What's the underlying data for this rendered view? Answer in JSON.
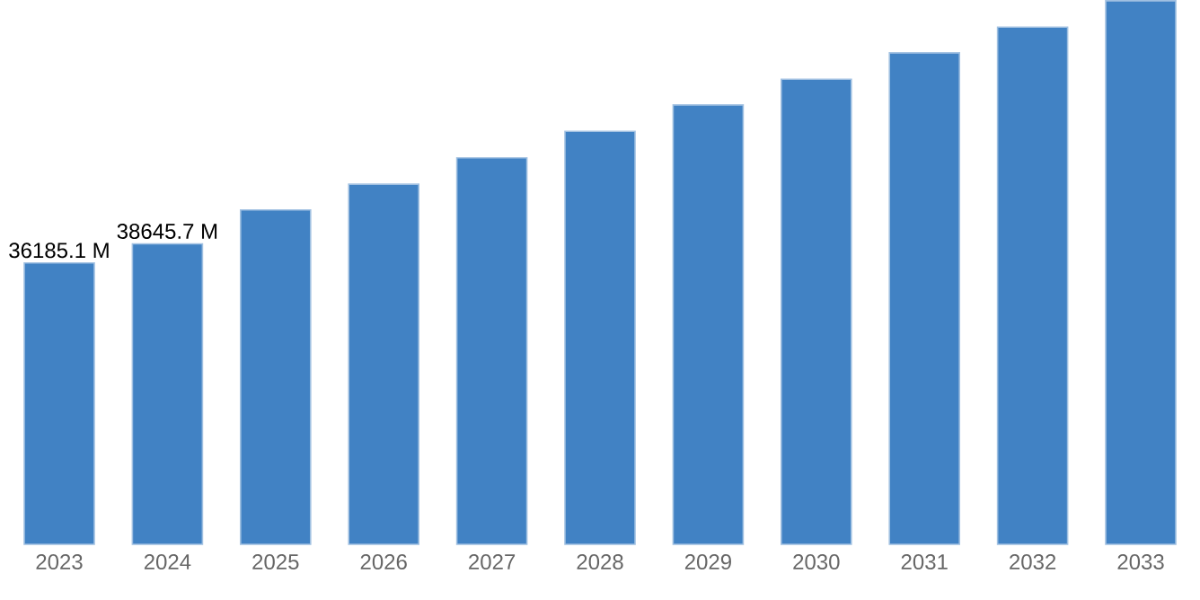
{
  "chart_data": {
    "type": "bar",
    "categories": [
      "2023",
      "2024",
      "2025",
      "2026",
      "2027",
      "2028",
      "2029",
      "2030",
      "2031",
      "2032",
      "2033"
    ],
    "values": [
      36185.1,
      38645.7,
      43000,
      46300,
      49700,
      53100,
      56500,
      59800,
      63200,
      66500,
      69900
    ],
    "value_labels": [
      "36185.1 M",
      "38645.7 M",
      null,
      null,
      null,
      null,
      null,
      null,
      null,
      null,
      null
    ],
    "color": "#4182c4",
    "ylim": [
      0,
      70000
    ]
  }
}
